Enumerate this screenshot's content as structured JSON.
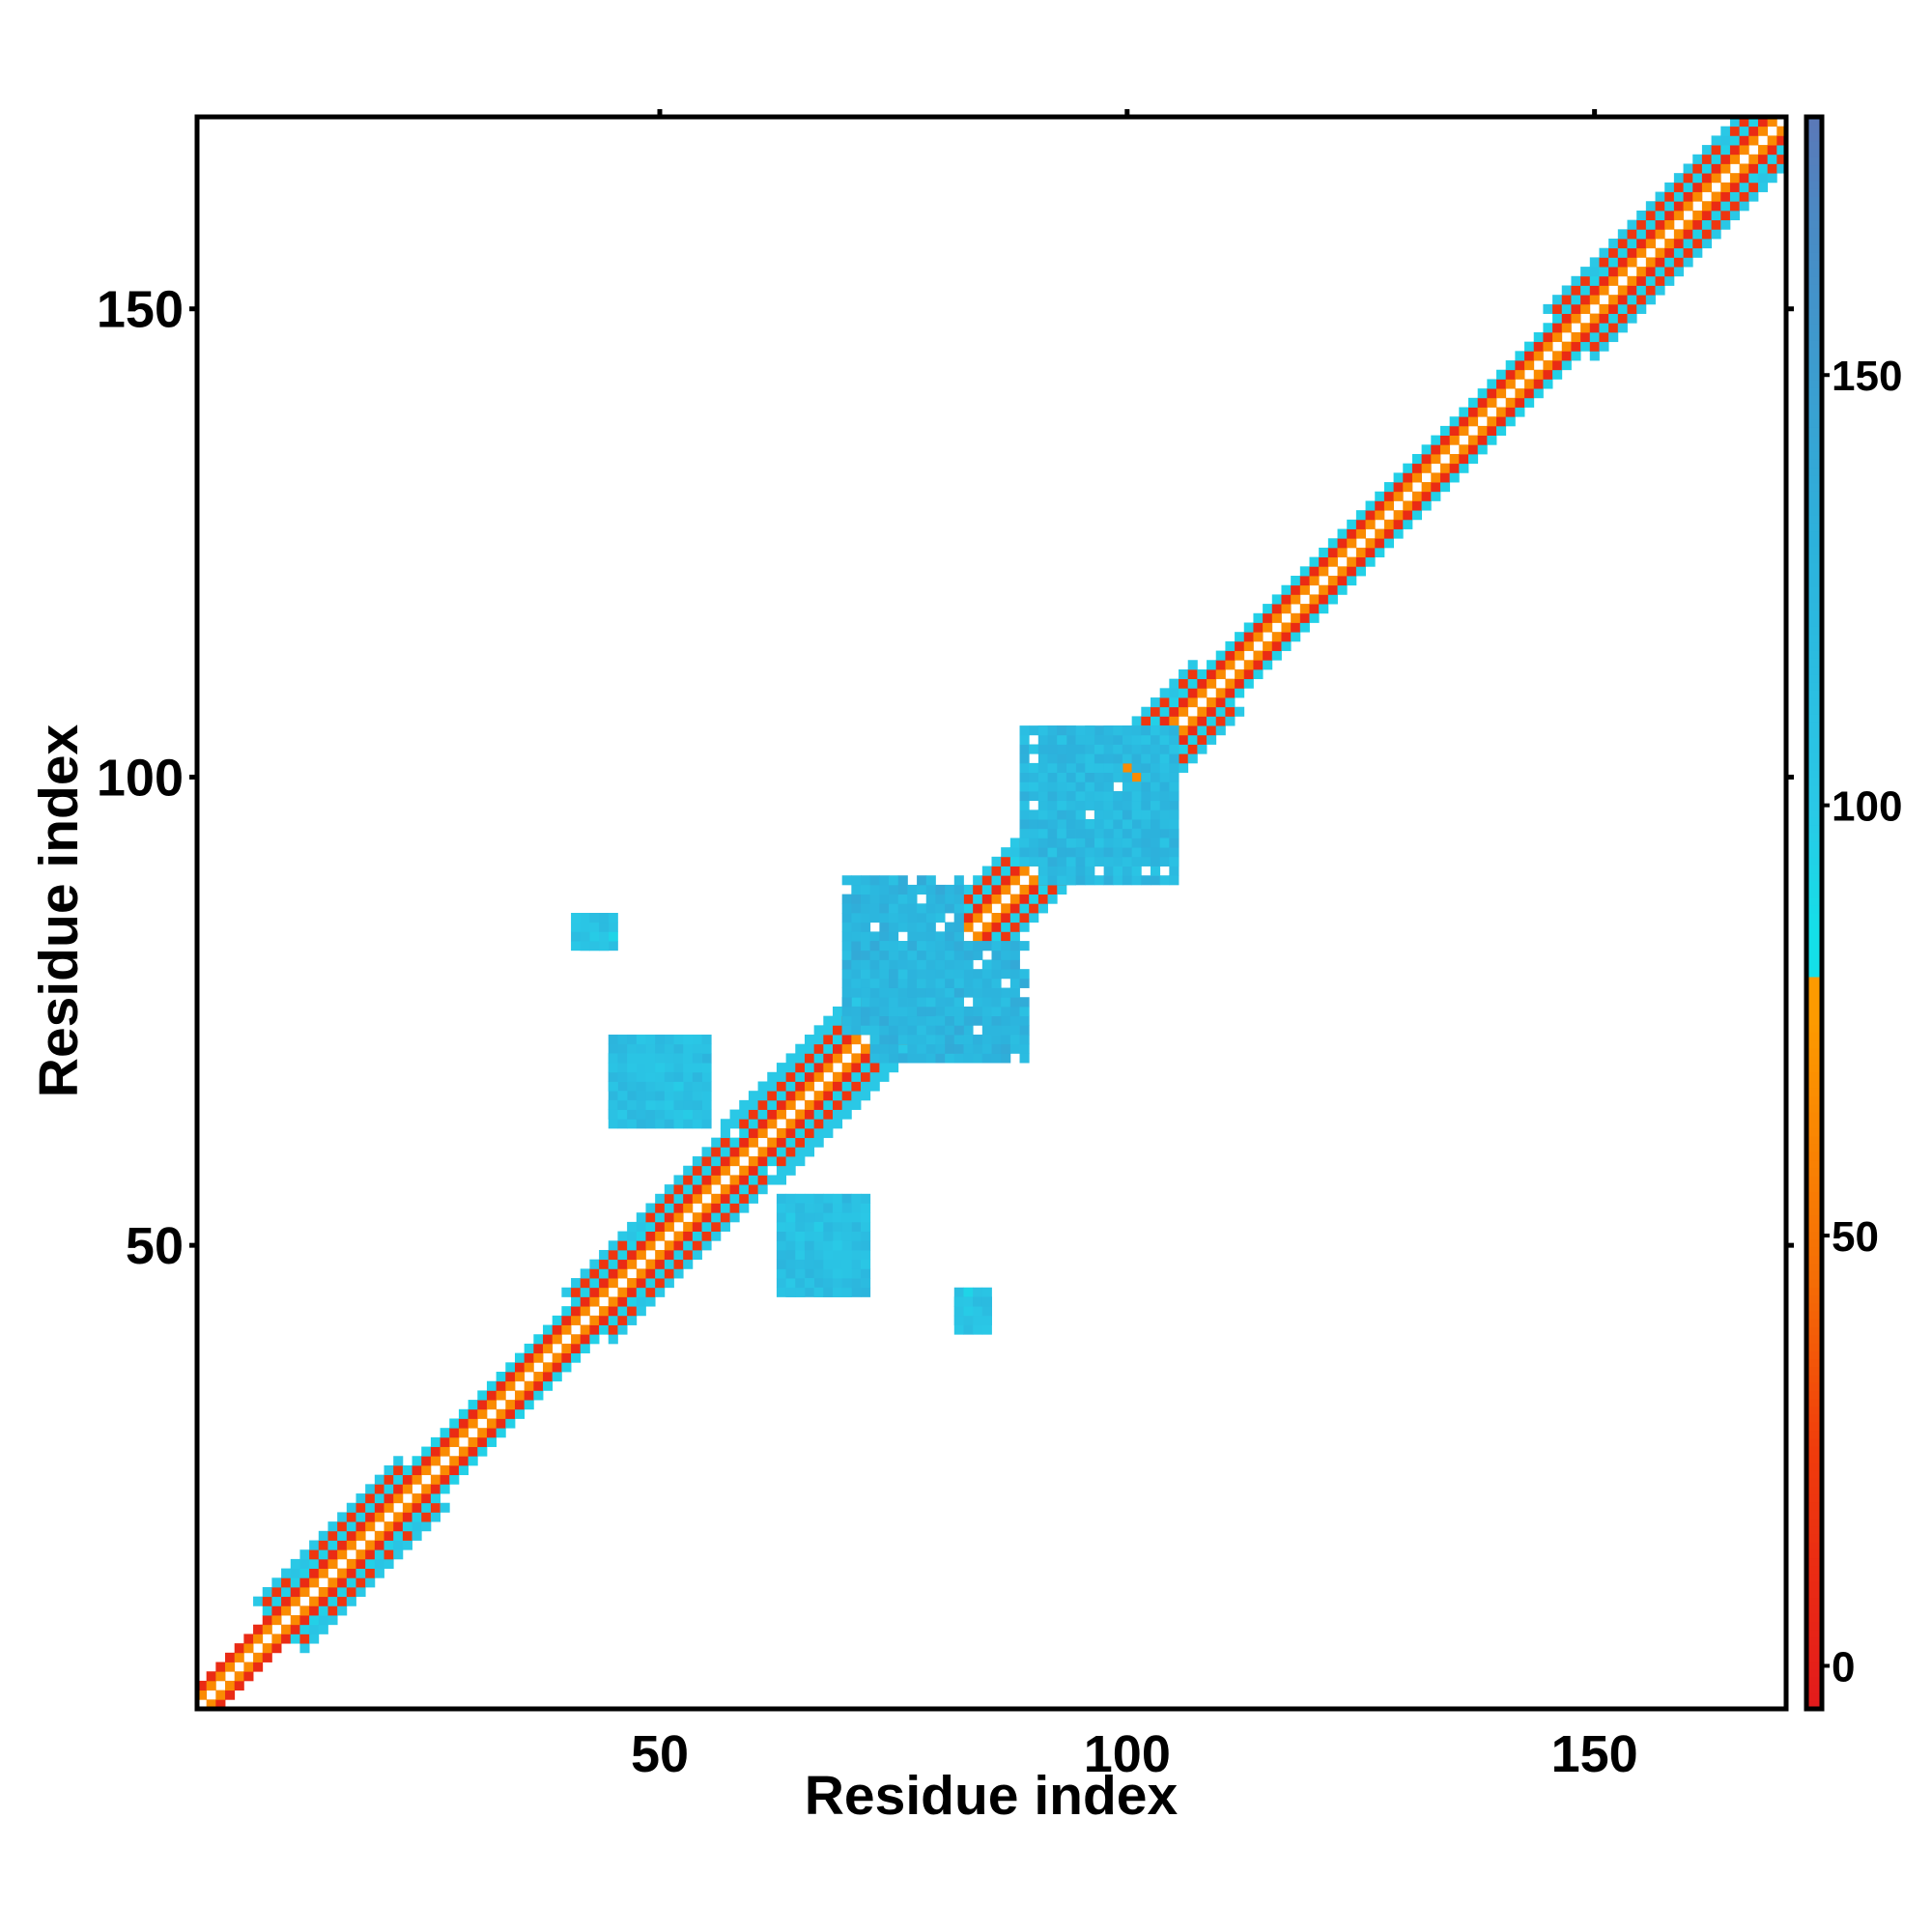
{
  "chart_data": {
    "type": "heatmap",
    "title": "",
    "xlabel": "Residue index",
    "ylabel": "Residue index",
    "xlim": [
      0.5,
      170.5
    ],
    "ylim": [
      0.5,
      170.5
    ],
    "x_ticks": [
      50,
      100,
      150
    ],
    "y_ticks": [
      50,
      100,
      150
    ],
    "grid": false,
    "legend": "none",
    "colorbar": {
      "position": "right",
      "range": [
        -5,
        180
      ],
      "ticks": [
        0,
        50,
        100,
        150
      ],
      "stops": [
        {
          "value": -5,
          "color": "#e31a1c"
        },
        {
          "value": 25,
          "color": "#f03c0c"
        },
        {
          "value": 45,
          "color": "#f56d06"
        },
        {
          "value": 75,
          "color": "#fd9a00"
        },
        {
          "value": 85,
          "color": "#14e0e8"
        },
        {
          "value": 100,
          "color": "#2ac8e6"
        },
        {
          "value": 130,
          "color": "#2cb2dc"
        },
        {
          "value": 168,
          "color": "#4a8ac4"
        },
        {
          "value": 180,
          "color": "#5b78b8"
        }
      ]
    },
    "diagonal_band": {
      "x_range": [
        1,
        170
      ],
      "half_width_by_residue": [
        [
          1,
          2
        ],
        [
          10,
          3
        ],
        [
          11,
          5
        ],
        [
          21,
          5
        ],
        [
          22,
          3
        ],
        [
          43,
          3
        ],
        [
          44,
          5
        ],
        [
          56,
          5
        ],
        [
          57,
          3
        ],
        [
          61,
          3
        ],
        [
          62,
          6
        ],
        [
          74,
          6
        ],
        [
          75,
          3
        ],
        [
          85,
          3
        ],
        [
          86,
          5
        ],
        [
          106,
          5
        ],
        [
          107,
          3
        ],
        [
          148,
          3
        ],
        [
          149,
          5
        ],
        [
          170,
          5
        ]
      ]
    },
    "off_diagonal_patches": [
      {
        "x": [
          42,
          45
        ],
        "y": [
          82,
          85
        ],
        "value": 120
      },
      {
        "x": [
          45,
          55
        ],
        "y": [
          63,
          72
        ],
        "value": 130
      },
      {
        "x": [
          64,
          70
        ],
        "y": [
          45,
          54
        ],
        "value": 125
      },
      {
        "x": [
          82,
          85
        ],
        "y": [
          41,
          44
        ],
        "value": 120
      },
      {
        "x": [
          70,
          82
        ],
        "y": [
          73,
          89
        ],
        "value": 140
      },
      {
        "x": [
          89,
          105
        ],
        "y": [
          91,
          105
        ],
        "value": 135
      }
    ]
  }
}
